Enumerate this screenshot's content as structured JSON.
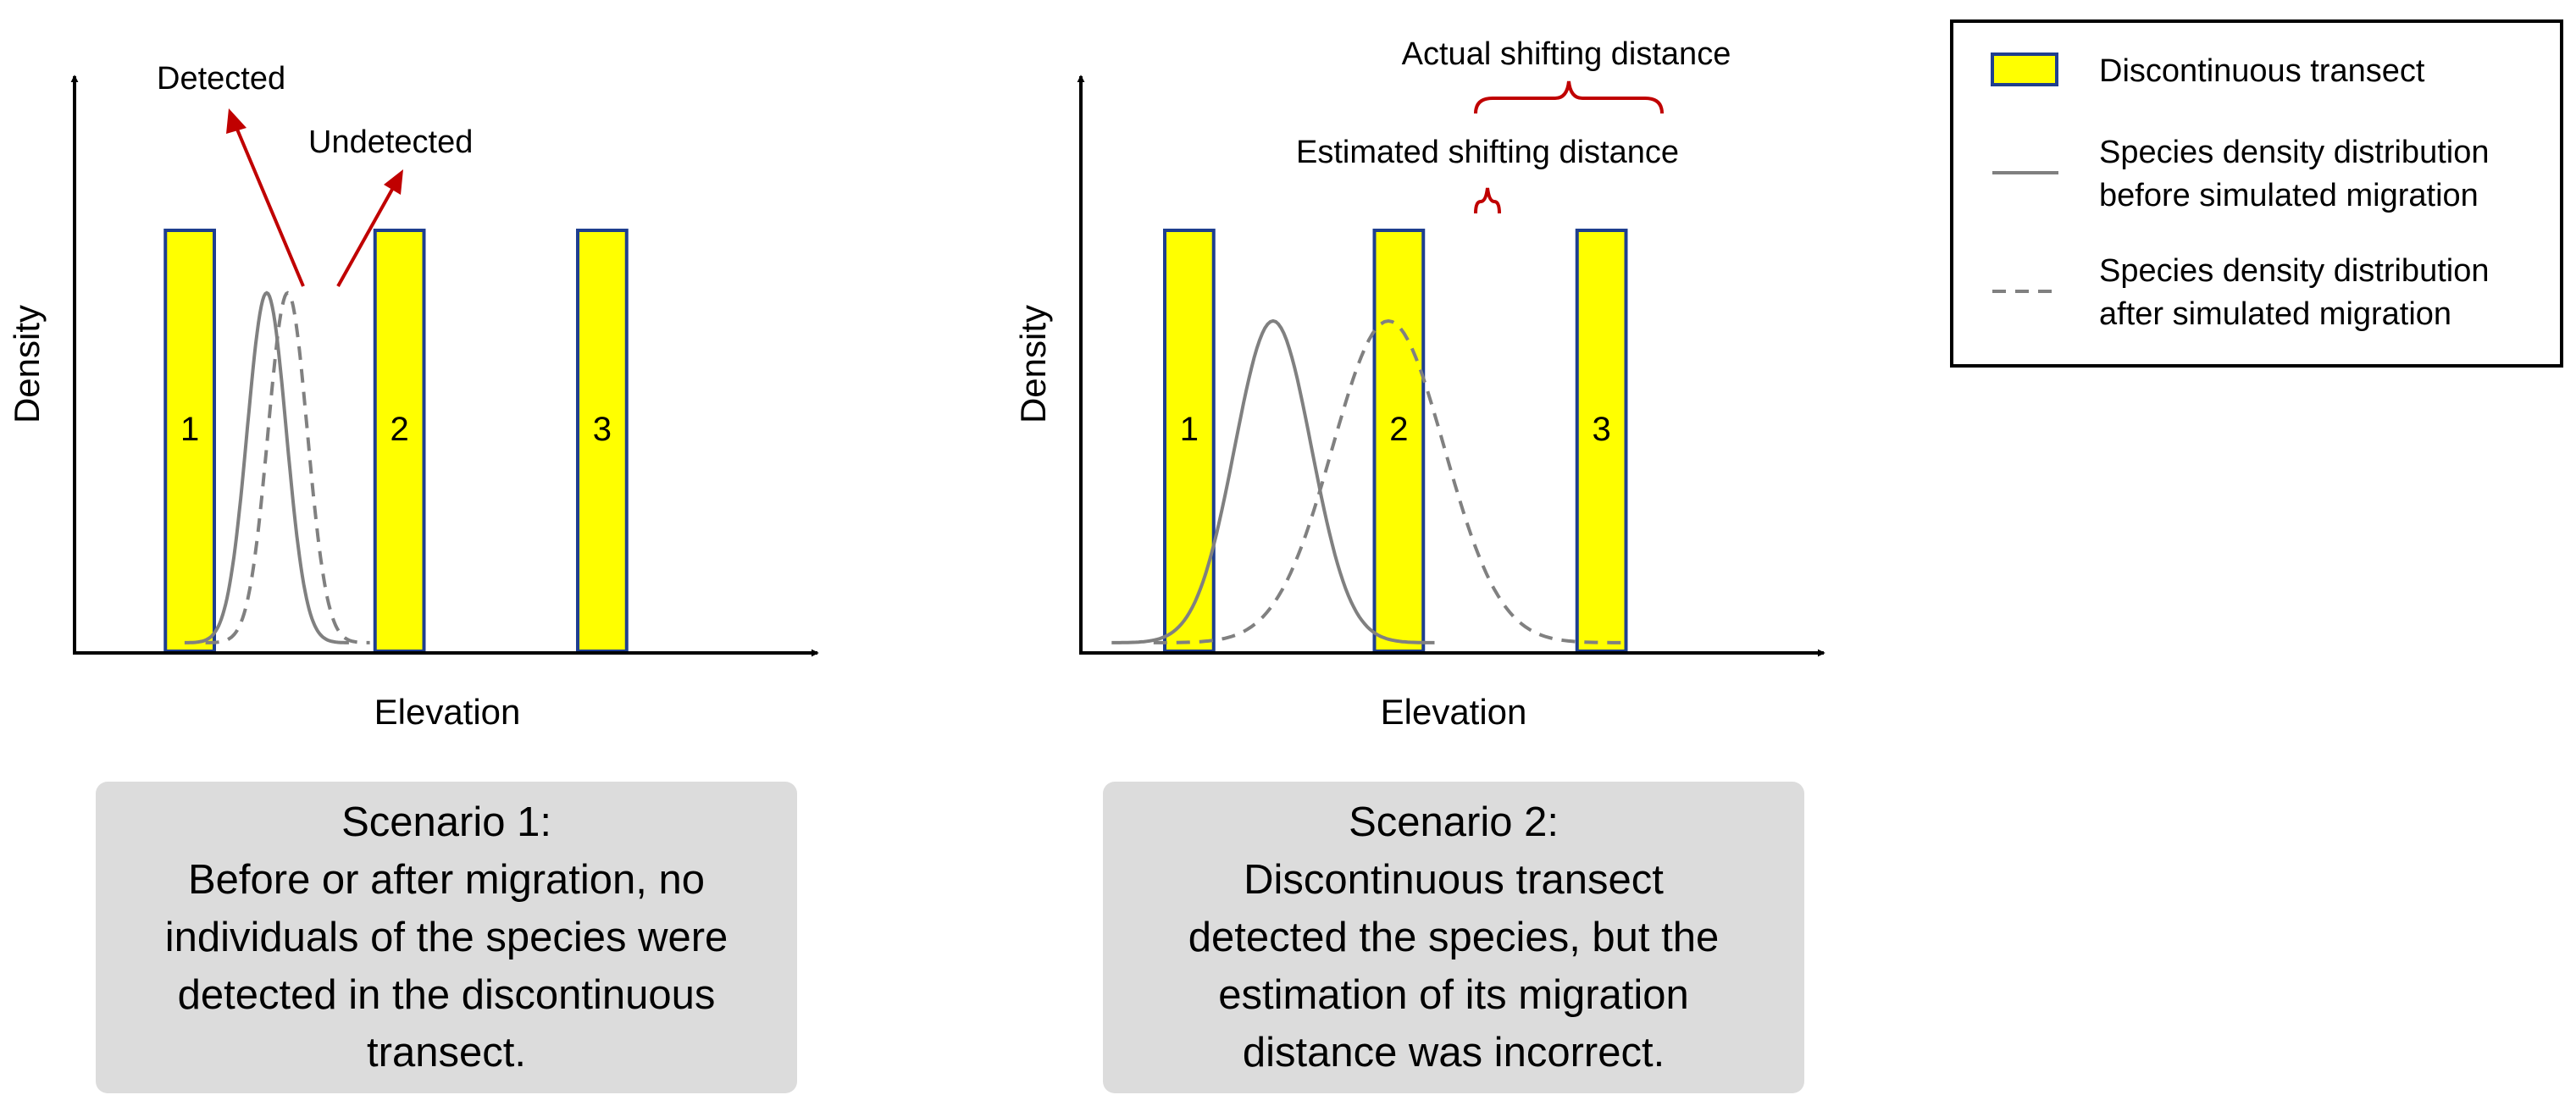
{
  "colors": {
    "bar_fill": "#ffff00",
    "bar_stroke": "#1f3f8f",
    "curve": "#808080",
    "arrow_red": "#c00000",
    "axis": "#000000",
    "box_bg": "#dcdcdc"
  },
  "panels": [
    {
      "y_label": "Density",
      "x_label": "Elevation",
      "bars": [
        {
          "label": "1",
          "x_from": 1.3,
          "x_to": 2.0
        },
        {
          "label": "2",
          "x_from": 4.3,
          "x_to": 5.0
        },
        {
          "label": "3",
          "x_from": 7.2,
          "x_to": 7.9
        }
      ],
      "curve_before": {
        "mean": 2.75,
        "sd": 0.28,
        "peak": 0.87
      },
      "curve_after": {
        "mean": 3.05,
        "sd": 0.28,
        "peak": 0.87
      },
      "annotations": {
        "detected": "Detected",
        "undetected": "Undetected"
      },
      "scenario": {
        "title": "Scenario 1:",
        "lines": [
          "Before or after migration, no",
          "individuals of the species were",
          "detected in the discontinuous",
          "transect."
        ]
      }
    },
    {
      "y_label": "Density",
      "x_label": "Elevation",
      "bars": [
        {
          "label": "1",
          "x_from": 1.2,
          "x_to": 1.9
        },
        {
          "label": "2",
          "x_from": 4.2,
          "x_to": 4.9
        },
        {
          "label": "3",
          "x_from": 7.1,
          "x_to": 7.8
        }
      ],
      "curve_before": {
        "mean": 2.75,
        "sd": 0.55,
        "peak": 0.8
      },
      "curve_after": {
        "mean": 4.4,
        "sd": 0.8,
        "peak": 0.8
      },
      "annotations": {
        "actual": "Actual shifting distance",
        "estimated": "Estimated shifting distance"
      },
      "scenario": {
        "title": "Scenario 2:",
        "lines": [
          "Discontinuous transect",
          "detected the species, but the",
          "estimation of its migration",
          "distance was incorrect."
        ]
      }
    }
  ],
  "legend": {
    "items": [
      {
        "kind": "bar",
        "lines": [
          "Discontinuous transect"
        ]
      },
      {
        "kind": "solid",
        "lines": [
          "Species density distribution",
          "before simulated migration"
        ]
      },
      {
        "kind": "dashed",
        "lines": [
          "Species density distribution",
          "after simulated migration"
        ]
      }
    ]
  }
}
